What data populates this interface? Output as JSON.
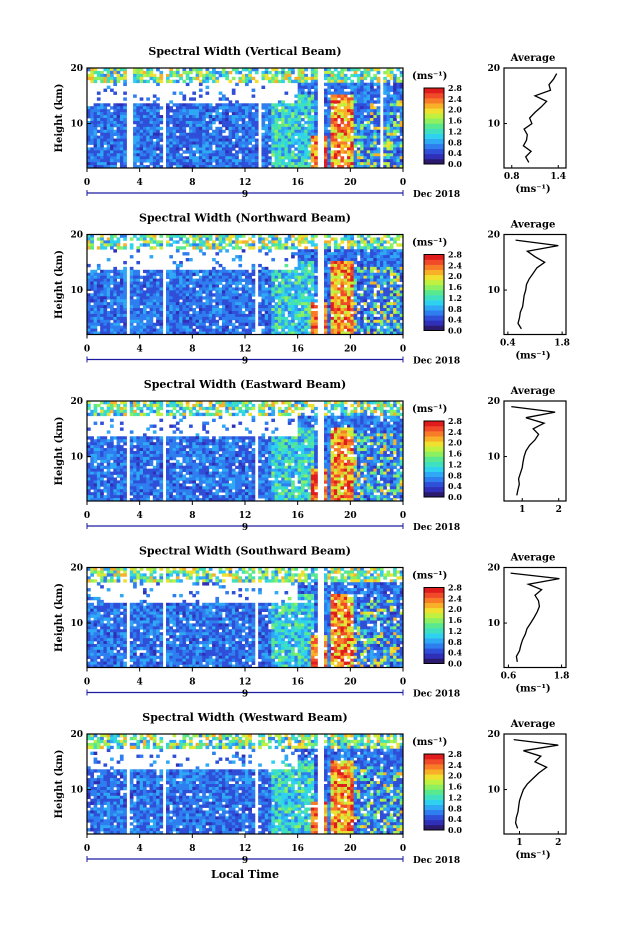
{
  "page": {
    "x_axis_title": "Local Time",
    "date_label": "Dec 2018",
    "unit_label": "(ms⁻¹)",
    "avg_title": "Average",
    "height_label": "Height (km)",
    "day_marker": "9"
  },
  "colormap": [
    "#2b1a6e",
    "#2f2fb8",
    "#2f4fd8",
    "#2f7ef0",
    "#2fa8f5",
    "#2fd2ee",
    "#3fe0c0",
    "#58e890",
    "#8cf060",
    "#c0f040",
    "#f0e030",
    "#f8b028",
    "#f87c28",
    "#f04a28",
    "#e01c1c"
  ],
  "chart_data": [
    {
      "type": "heatmap",
      "title": "Spectral Width (Vertical Beam)",
      "x_ticks": [
        "0",
        "4",
        "8",
        "12",
        "16",
        "20",
        "0"
      ],
      "xlim": [
        0,
        24
      ],
      "y_ticks": [
        "20",
        "10"
      ],
      "ylim": [
        2,
        20
      ],
      "colorbar_ticks": [
        "2.8",
        "2.4",
        "2.0",
        "1.6",
        "1.2",
        "0.8",
        "0.4",
        "0.0"
      ],
      "colorbar_range": [
        0,
        2.8
      ],
      "gap_bands_hours": [
        [
          3.1,
          3.4
        ],
        [
          5.7,
          5.9
        ],
        [
          12.9,
          13.3
        ],
        [
          17.4,
          18.1
        ],
        [
          22.3,
          22.5
        ]
      ],
      "average_profile": {
        "xlabel": "(ms⁻¹)",
        "x_ticks": [
          "0.8",
          "1.4"
        ],
        "xlim": [
          0.7,
          1.5
        ],
        "heights_km": [
          3,
          4,
          5,
          6,
          7,
          8,
          9,
          10,
          11,
          12,
          13,
          14,
          15,
          16,
          17,
          18,
          19
        ],
        "values": [
          1.02,
          0.98,
          1.05,
          0.95,
          0.99,
          1.0,
          0.96,
          1.06,
          1.03,
          1.1,
          1.18,
          1.25,
          1.1,
          1.3,
          1.28,
          1.34,
          1.38
        ]
      }
    },
    {
      "type": "heatmap",
      "title": "Spectral Width (Northward Beam)",
      "x_ticks": [
        "0",
        "4",
        "8",
        "12",
        "16",
        "20",
        "0"
      ],
      "xlim": [
        0,
        24
      ],
      "y_ticks": [
        "20",
        "10"
      ],
      "ylim": [
        2,
        20
      ],
      "colorbar_ticks": [
        "2.8",
        "2.4",
        "2.0",
        "1.6",
        "1.2",
        "0.8",
        "0.4",
        "0.0"
      ],
      "colorbar_range": [
        0,
        2.8
      ],
      "gap_bands_hours": [
        [
          3.0,
          3.3
        ],
        [
          5.7,
          5.9
        ],
        [
          12.8,
          13.1
        ],
        [
          17.5,
          18.0
        ]
      ],
      "average_profile": {
        "xlabel": "(ms⁻¹)",
        "x_ticks": [
          "0.4",
          "1.8"
        ],
        "xlim": [
          0.3,
          1.9
        ],
        "heights_km": [
          3,
          4,
          5,
          6,
          7,
          8,
          9,
          10,
          11,
          12,
          13,
          14,
          15,
          16,
          17,
          18,
          19
        ],
        "values": [
          0.75,
          0.66,
          0.7,
          0.72,
          0.78,
          0.8,
          0.82,
          0.86,
          0.88,
          0.95,
          1.05,
          1.15,
          1.35,
          1.1,
          0.9,
          1.7,
          0.6
        ]
      }
    },
    {
      "type": "heatmap",
      "title": "Spectral Width (Eastward Beam)",
      "x_ticks": [
        "0",
        "4",
        "8",
        "12",
        "16",
        "20",
        "0"
      ],
      "xlim": [
        0,
        24
      ],
      "y_ticks": [
        "20",
        "10"
      ],
      "ylim": [
        2,
        20
      ],
      "colorbar_ticks": [
        "2.8",
        "2.4",
        "2.0",
        "1.6",
        "1.2",
        "0.8",
        "0.4",
        "0.0"
      ],
      "colorbar_range": [
        0,
        2.8
      ],
      "gap_bands_hours": [
        [
          3.0,
          3.3
        ],
        [
          5.7,
          5.9
        ],
        [
          12.8,
          13.1
        ],
        [
          17.5,
          18.0
        ]
      ],
      "average_profile": {
        "xlabel": "",
        "x_ticks": [
          "1",
          "2"
        ],
        "xlim": [
          0.5,
          2.2
        ],
        "heights_km": [
          3,
          4,
          5,
          6,
          7,
          8,
          9,
          10,
          11,
          12,
          13,
          14,
          15,
          16,
          17,
          18,
          19
        ],
        "values": [
          0.85,
          0.88,
          0.92,
          0.9,
          0.95,
          1.0,
          1.02,
          1.05,
          1.1,
          1.2,
          1.35,
          1.45,
          1.3,
          1.6,
          1.1,
          1.9,
          0.7
        ]
      }
    },
    {
      "type": "heatmap",
      "title": "Spectral Width (Southward Beam)",
      "x_ticks": [
        "0",
        "4",
        "8",
        "12",
        "16",
        "20",
        "0"
      ],
      "xlim": [
        0,
        24
      ],
      "y_ticks": [
        "20",
        "10"
      ],
      "ylim": [
        2,
        20
      ],
      "colorbar_ticks": [
        "2.8",
        "2.4",
        "2.0",
        "1.6",
        "1.2",
        "0.8",
        "0.4",
        "0.0"
      ],
      "colorbar_range": [
        0,
        2.8
      ],
      "gap_bands_hours": [
        [
          3.0,
          3.3
        ],
        [
          5.7,
          5.9
        ],
        [
          12.8,
          13.1
        ],
        [
          17.5,
          18.0
        ]
      ],
      "average_profile": {
        "xlabel": "(ms⁻¹)",
        "x_ticks": [
          "0.6",
          "1.8"
        ],
        "xlim": [
          0.5,
          1.9
        ],
        "heights_km": [
          3,
          4,
          5,
          6,
          7,
          8,
          9,
          10,
          11,
          12,
          13,
          14,
          15,
          16,
          17,
          18,
          19
        ],
        "values": [
          0.8,
          0.78,
          0.85,
          0.88,
          0.92,
          0.98,
          1.02,
          1.1,
          1.18,
          1.25,
          1.3,
          1.28,
          1.2,
          1.35,
          1.05,
          1.75,
          0.65
        ]
      }
    },
    {
      "type": "heatmap",
      "title": "Spectral Width (Westward Beam)",
      "x_ticks": [
        "0",
        "4",
        "8",
        "12",
        "16",
        "20",
        "0"
      ],
      "xlim": [
        0,
        24
      ],
      "y_ticks": [
        "20",
        "10"
      ],
      "ylim": [
        2,
        20
      ],
      "colorbar_ticks": [
        "2.8",
        "2.4",
        "2.0",
        "1.6",
        "1.2",
        "0.8",
        "0.4",
        "0.0"
      ],
      "colorbar_range": [
        0,
        2.8
      ],
      "gap_bands_hours": [
        [
          3.0,
          3.3
        ],
        [
          5.7,
          5.9
        ],
        [
          12.8,
          13.1
        ],
        [
          17.5,
          18.0
        ]
      ],
      "average_profile": {
        "xlabel": "(ms⁻¹)",
        "x_ticks": [
          "1",
          "2"
        ],
        "xlim": [
          0.6,
          2.2
        ],
        "heights_km": [
          3,
          4,
          5,
          6,
          7,
          8,
          9,
          10,
          11,
          12,
          13,
          14,
          15,
          16,
          17,
          18,
          19
        ],
        "values": [
          0.95,
          0.9,
          0.92,
          0.96,
          0.98,
          1.0,
          1.05,
          1.1,
          1.2,
          1.35,
          1.5,
          1.7,
          1.4,
          1.55,
          1.1,
          2.0,
          0.85
        ]
      }
    }
  ]
}
